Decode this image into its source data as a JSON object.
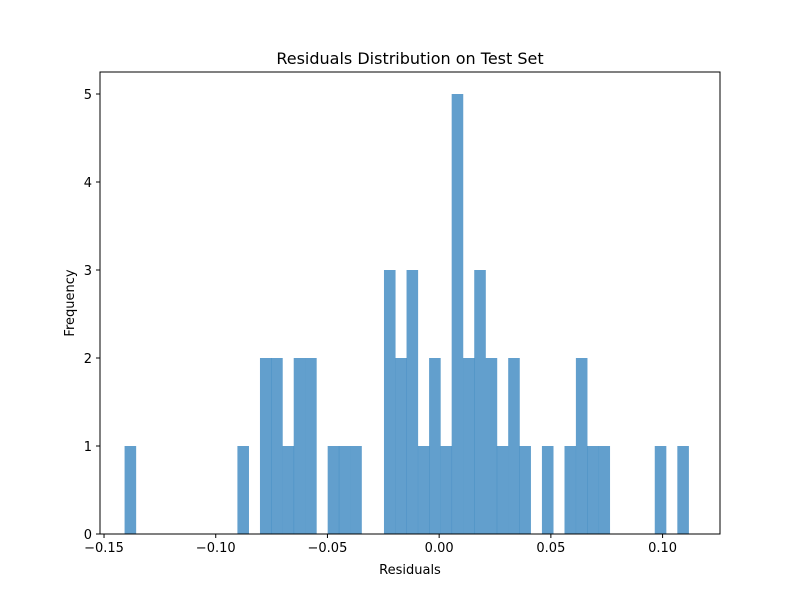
{
  "chart_data": {
    "type": "bar",
    "title": "Residuals Distribution on Test Set",
    "xlabel": "Residuals",
    "ylabel": "Frequency",
    "xlim": [
      -0.1518,
      0.1257
    ],
    "ylim": [
      0,
      5.25
    ],
    "grid": false,
    "bar_color": "#3b87c0",
    "bar_alpha": 0.8,
    "bin_width": 0.00505,
    "bins": [
      {
        "x0": -0.1408,
        "count": 1
      },
      {
        "x0": -0.0903,
        "count": 1
      },
      {
        "x0": -0.0802,
        "count": 2
      },
      {
        "x0": -0.0752,
        "count": 2
      },
      {
        "x0": -0.0701,
        "count": 1
      },
      {
        "x0": -0.0651,
        "count": 2
      },
      {
        "x0": -0.06,
        "count": 2
      },
      {
        "x0": -0.0499,
        "count": 1
      },
      {
        "x0": -0.0449,
        "count": 1
      },
      {
        "x0": -0.0398,
        "count": 1
      },
      {
        "x0": -0.0247,
        "count": 3
      },
      {
        "x0": -0.0196,
        "count": 2
      },
      {
        "x0": -0.0146,
        "count": 3
      },
      {
        "x0": -0.0095,
        "count": 1
      },
      {
        "x0": -0.0045,
        "count": 2
      },
      {
        "x0": 0.0006,
        "count": 1
      },
      {
        "x0": 0.0056,
        "count": 5
      },
      {
        "x0": 0.0107,
        "count": 2
      },
      {
        "x0": 0.0157,
        "count": 3
      },
      {
        "x0": 0.0208,
        "count": 2
      },
      {
        "x0": 0.0258,
        "count": 1
      },
      {
        "x0": 0.0309,
        "count": 2
      },
      {
        "x0": 0.0359,
        "count": 1
      },
      {
        "x0": 0.046,
        "count": 1
      },
      {
        "x0": 0.0561,
        "count": 1
      },
      {
        "x0": 0.0612,
        "count": 2
      },
      {
        "x0": 0.0662,
        "count": 1
      },
      {
        "x0": 0.0713,
        "count": 1
      },
      {
        "x0": 0.0965,
        "count": 1
      },
      {
        "x0": 0.1066,
        "count": 1
      }
    ],
    "xticks": [
      -0.15,
      -0.1,
      -0.05,
      0.0,
      0.05,
      0.1
    ],
    "xtick_labels": [
      "−0.15",
      "−0.10",
      "−0.05",
      "0.00",
      "0.05",
      "0.10"
    ],
    "yticks": [
      0,
      1,
      2,
      3,
      4,
      5
    ],
    "ytick_labels": [
      "0",
      "1",
      "2",
      "3",
      "4",
      "5"
    ]
  }
}
